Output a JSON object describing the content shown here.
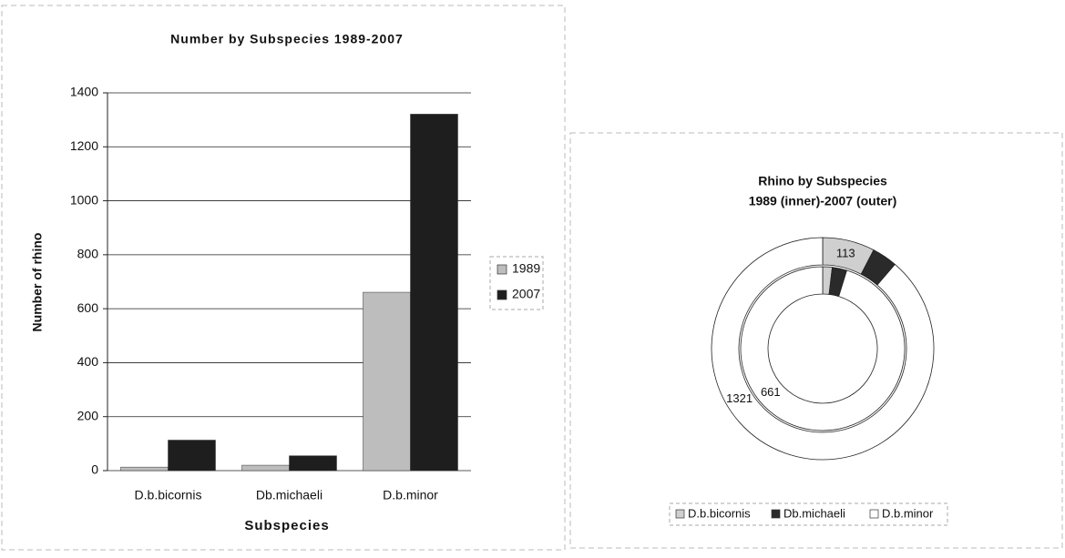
{
  "chart_data": [
    {
      "type": "bar",
      "title": "Number by Subspecies 1989-2007",
      "x_label": "Subspecies",
      "y_label": "Number of rhino",
      "categories": [
        "D.b.bicornis",
        "Db.michaeli",
        "D.b.minor"
      ],
      "series": [
        {
          "name": "1989",
          "color": "#bdbdbd",
          "values": [
            13,
            20,
            661
          ]
        },
        {
          "name": "2007",
          "color": "#1e1e1e",
          "values": [
            113,
            55,
            1321
          ]
        }
      ],
      "ylim": [
        0,
        1400
      ],
      "yticks": [
        0,
        200,
        400,
        600,
        800,
        1000,
        1200,
        1400
      ],
      "grid": true,
      "legend": "right"
    },
    {
      "type": "pie",
      "title": "Rhino by Subspecies",
      "subtitle": "1989 (inner)-2007 (outer)",
      "categories": [
        "D.b.bicornis",
        "Db.michaeli",
        "D.b.minor"
      ],
      "colors": [
        "#cfcfcf",
        "#2a2a2a",
        "#ffffff"
      ],
      "series": [
        {
          "name": "1989",
          "values": [
            13,
            20,
            661
          ]
        },
        {
          "name": "2007",
          "values": [
            113,
            55,
            1321
          ]
        }
      ],
      "legend": "bottom"
    }
  ]
}
